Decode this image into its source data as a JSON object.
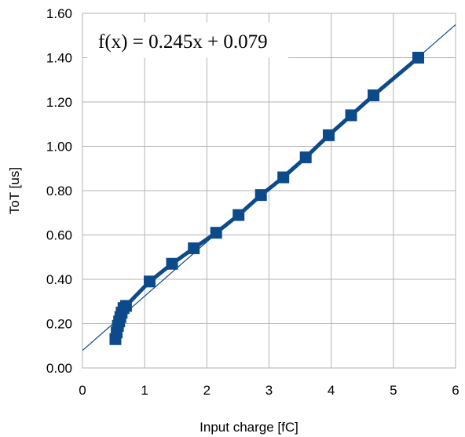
{
  "chart_data": {
    "type": "line",
    "xlabel": "Input charge [fC]",
    "ylabel": "ToT [us]",
    "xlim": [
      0,
      6
    ],
    "ylim": [
      0,
      1.6
    ],
    "x_ticks": [
      "0",
      "1",
      "2",
      "3",
      "4",
      "5",
      "6"
    ],
    "y_ticks": [
      "0.00",
      "0.20",
      "0.40",
      "0.60",
      "0.80",
      "1.00",
      "1.20",
      "1.40",
      "1.60"
    ],
    "grid": true,
    "series": [
      {
        "marker": "square",
        "color": "#0d4a8a",
        "x": [
          0.53,
          0.55,
          0.57,
          0.59,
          0.61,
          0.63,
          0.66,
          0.7,
          1.08,
          1.44,
          1.79,
          2.15,
          2.51,
          2.87,
          3.23,
          3.59,
          3.96,
          4.32,
          4.68,
          5.4
        ],
        "y": [
          0.13,
          0.16,
          0.19,
          0.21,
          0.23,
          0.25,
          0.27,
          0.28,
          0.39,
          0.47,
          0.54,
          0.61,
          0.69,
          0.78,
          0.86,
          0.95,
          1.05,
          1.14,
          1.23,
          1.4
        ]
      }
    ],
    "trendline": {
      "slope": 0.245,
      "intercept": 0.079,
      "color": "#0d4a8a",
      "label": "f(x) = 0.245x + 0.079"
    }
  }
}
